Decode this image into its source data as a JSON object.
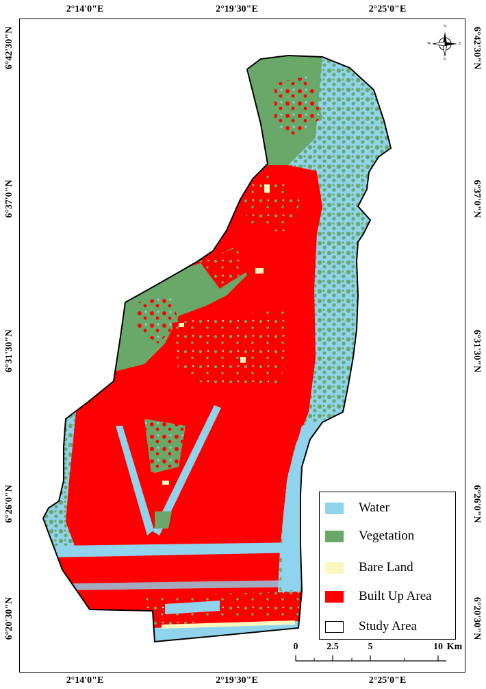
{
  "coords": {
    "top": [
      "2°14'0\"E",
      "2°19'30\"E",
      "2°25'0\"E"
    ],
    "bottom": [
      "2°14'0\"E",
      "2°19'30\"E",
      "2°25'0\"E"
    ],
    "left": [
      "6°42'30\"N",
      "6°37'0\"N",
      "6°31'30\"N",
      "6°26'0\"N",
      "6°20'30\"N"
    ],
    "right": [
      "6°42'30\"N",
      "6°37'0\"N",
      "6°31'30\"N",
      "6°26'0\"N",
      "6°20'30\"N"
    ]
  },
  "legend": {
    "items": [
      {
        "label": "Water",
        "color": "#8fd3ec"
      },
      {
        "label": "Vegetation",
        "color": "#6aa86a"
      },
      {
        "label": "Bare Land",
        "color": "#fbf7c0"
      },
      {
        "label": "Built Up Area",
        "color": "#ff0000"
      },
      {
        "label": "Study Area",
        "color": "#ffffff"
      }
    ]
  },
  "scale": {
    "ticks": [
      "0",
      "2.5",
      "5",
      "10"
    ],
    "unit": "Km"
  },
  "north_arrow": {
    "n": "N",
    "s": "S",
    "e": "E",
    "w": "W",
    "icon": "compass-rose-icon"
  },
  "colors": {
    "water": "#8fd3ec",
    "vegetation": "#6aa86a",
    "bare": "#fbf7c0",
    "built": "#ff0000",
    "outline": "#000000"
  }
}
